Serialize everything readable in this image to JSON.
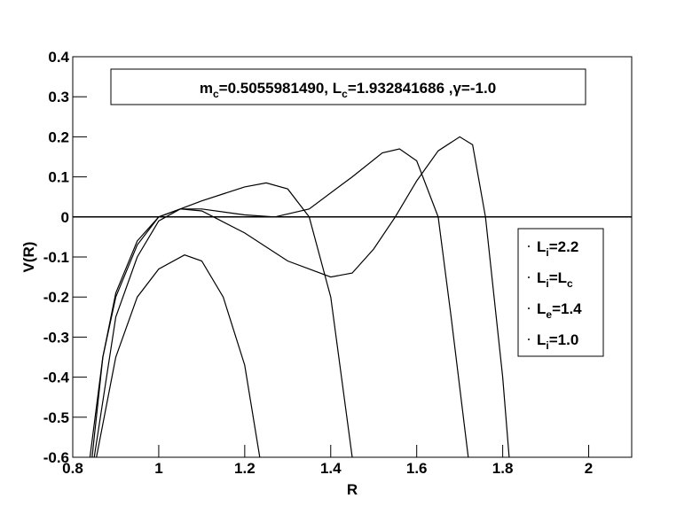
{
  "chart_data": {
    "type": "line",
    "title": [
      {
        "text": "m"
      },
      {
        "text": "c",
        "sub": true
      },
      {
        "text": "=0.5055981490, L"
      },
      {
        "text": "c",
        "sub": true
      },
      {
        "text": "=1.932841686 ,γ=-1.0"
      }
    ],
    "x_label": "R",
    "y_label": "V(R)",
    "xlim": [
      0.8,
      2.1
    ],
    "xticks": [
      0.8,
      1,
      1.2,
      1.4,
      1.6,
      1.8,
      2
    ],
    "ylim": [
      -0.6,
      0.4
    ],
    "yticks": [
      -0.6,
      -0.5,
      -0.4,
      -0.3,
      -0.2,
      -0.1,
      0,
      0.1,
      0.2,
      0.3,
      0.4
    ],
    "reference_line": 0,
    "series": [
      {
        "name": [
          {
            "text": "L"
          },
          {
            "text": "i",
            "sub": true
          },
          {
            "text": "=2.2"
          }
        ],
        "color": "#000000",
        "x": [
          0.84,
          0.87,
          0.9,
          0.95,
          1.0,
          1.05,
          1.1,
          1.2,
          1.3,
          1.4,
          1.45,
          1.5,
          1.55,
          1.6,
          1.65,
          1.7,
          1.73,
          1.76,
          1.78,
          1.8,
          1.815
        ],
        "values": [
          -0.6,
          -0.35,
          -0.2,
          -0.07,
          0.0,
          0.02,
          0.015,
          -0.04,
          -0.11,
          -0.15,
          -0.14,
          -0.08,
          0.0,
          0.09,
          0.165,
          0.2,
          0.18,
          0.0,
          -0.2,
          -0.4,
          -0.6
        ]
      },
      {
        "name": [
          {
            "text": "L"
          },
          {
            "text": "i",
            "sub": true
          },
          {
            "text": "=L"
          },
          {
            "text": "c",
            "sub": true
          }
        ],
        "color": "#000000",
        "x": [
          0.845,
          0.87,
          0.9,
          0.95,
          1.0,
          1.05,
          1.1,
          1.2,
          1.27,
          1.35,
          1.45,
          1.52,
          1.56,
          1.6,
          1.65,
          1.68,
          1.72
        ],
        "values": [
          -0.6,
          -0.35,
          -0.19,
          -0.06,
          0.0,
          0.02,
          0.02,
          0.005,
          0.0,
          0.02,
          0.1,
          0.16,
          0.17,
          0.14,
          0.0,
          -0.25,
          -0.6
        ]
      },
      {
        "name": [
          {
            "text": "L"
          },
          {
            "text": "e",
            "sub": true
          },
          {
            "text": "=1.4"
          }
        ],
        "color": "#000000",
        "x": [
          0.85,
          0.9,
          0.95,
          1.0,
          1.05,
          1.1,
          1.2,
          1.25,
          1.3,
          1.35,
          1.4,
          1.45
        ],
        "values": [
          -0.6,
          -0.25,
          -0.1,
          -0.01,
          0.02,
          0.04,
          0.075,
          0.085,
          0.07,
          0.0,
          -0.2,
          -0.6
        ]
      },
      {
        "name": [
          {
            "text": "L"
          },
          {
            "text": "i",
            "sub": true
          },
          {
            "text": "=1.0"
          }
        ],
        "color": "#000000",
        "x": [
          0.855,
          0.9,
          0.95,
          1.0,
          1.06,
          1.1,
          1.15,
          1.2,
          1.235
        ],
        "values": [
          -0.6,
          -0.35,
          -0.2,
          -0.13,
          -0.095,
          -0.11,
          -0.2,
          -0.37,
          -0.6
        ]
      }
    ]
  }
}
